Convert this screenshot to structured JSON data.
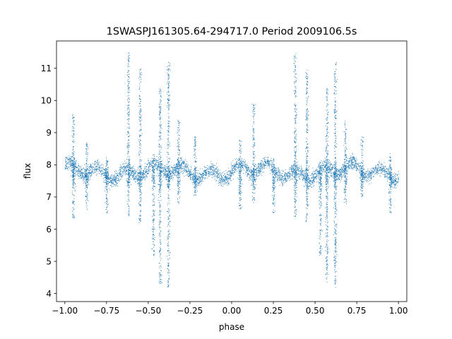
{
  "chart_data": {
    "type": "scatter",
    "title": "1SWASPJ161305.64-294717.0 Period 2009106.5s",
    "xlabel": "phase",
    "ylabel": "flux",
    "xlim": [
      -1.05,
      1.05
    ],
    "ylim": [
      3.75,
      11.85
    ],
    "xticks": [
      -1.0,
      -0.75,
      -0.5,
      -0.25,
      0.0,
      0.25,
      0.5,
      0.75,
      1.0
    ],
    "xtick_labels": [
      "−1.00",
      "−0.75",
      "−0.50",
      "−0.25",
      "0.00",
      "0.25",
      "0.50",
      "0.75",
      "1.00"
    ],
    "yticks": [
      4,
      5,
      6,
      7,
      8,
      9,
      10,
      11
    ],
    "ytick_labels": [
      "4",
      "5",
      "6",
      "7",
      "8",
      "9",
      "10",
      "11"
    ],
    "grid": false,
    "marker_color": "#1f77b4",
    "phase_range": [
      -1.0,
      1.0
    ],
    "baseline_flux": 7.8,
    "features": [
      {
        "phase": -0.95,
        "flux_min": 6.3,
        "flux_max": 9.6
      },
      {
        "phase": -0.87,
        "flux_min": 6.6,
        "flux_max": 8.7
      },
      {
        "phase": -0.75,
        "flux_min": 6.5,
        "flux_max": 8.2
      },
      {
        "phase": -0.62,
        "flux_min": 6.4,
        "flux_max": 11.5
      },
      {
        "phase": -0.55,
        "flux_min": 6.2,
        "flux_max": 11.0
      },
      {
        "phase": -0.47,
        "flux_min": 5.2,
        "flux_max": 8.0
      },
      {
        "phase": -0.43,
        "flux_min": 4.3,
        "flux_max": 10.4
      },
      {
        "phase": -0.38,
        "flux_min": 4.2,
        "flux_max": 11.2
      },
      {
        "phase": -0.32,
        "flux_min": 6.8,
        "flux_max": 9.4
      },
      {
        "phase": -0.22,
        "flux_min": 7.0,
        "flux_max": 8.9
      },
      {
        "phase": 0.05,
        "flux_min": 6.6,
        "flux_max": 8.8
      },
      {
        "phase": 0.13,
        "flux_min": 6.8,
        "flux_max": 9.9
      },
      {
        "phase": 0.25,
        "flux_min": 6.5,
        "flux_max": 8.2
      },
      {
        "phase": 0.38,
        "flux_min": 6.4,
        "flux_max": 11.5
      },
      {
        "phase": 0.45,
        "flux_min": 6.2,
        "flux_max": 11.0
      },
      {
        "phase": 0.53,
        "flux_min": 5.2,
        "flux_max": 8.0
      },
      {
        "phase": 0.57,
        "flux_min": 4.3,
        "flux_max": 10.4
      },
      {
        "phase": 0.62,
        "flux_min": 4.2,
        "flux_max": 11.2
      },
      {
        "phase": 0.68,
        "flux_min": 6.8,
        "flux_max": 9.4
      },
      {
        "phase": 0.78,
        "flux_min": 7.0,
        "flux_max": 8.9
      },
      {
        "phase": 0.95,
        "flux_min": 6.5,
        "flux_max": 8.4
      }
    ]
  }
}
